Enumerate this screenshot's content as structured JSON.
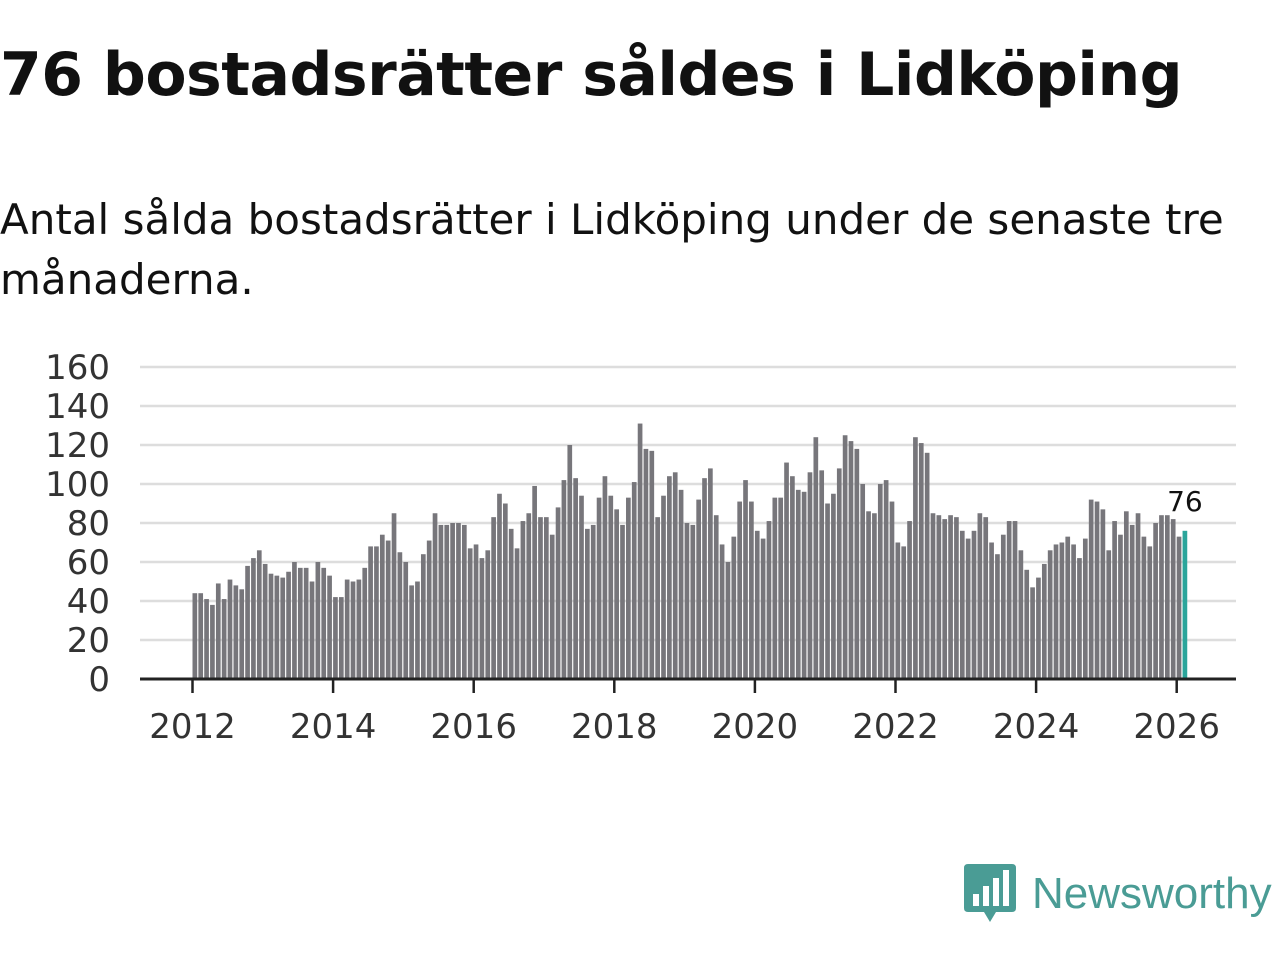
{
  "title": "76 bostadsrätter såldes i Lidköping",
  "subtitle": "Antal sålda bostadsrätter i Lidköping under de senaste tre månaderna.",
  "brand": {
    "name": "Newsworthy",
    "icon": "bar-chart-speech-bubble-icon",
    "color": "#4a9c95"
  },
  "chart_data": {
    "type": "bar",
    "title": "76 bostadsrätter såldes i Lidköping",
    "subtitle": "Antal sålda bostadsrätter i Lidköping under de senaste tre månaderna.",
    "xlabel": "",
    "ylabel": "",
    "ylim": [
      0,
      160
    ],
    "yticks": [
      "0",
      "20",
      "40",
      "60",
      "80",
      "100",
      "120",
      "140",
      "160"
    ],
    "xticks": [
      "2012",
      "2014",
      "2016",
      "2018",
      "2020",
      "2022",
      "2024",
      "2026"
    ],
    "x_start": {
      "year": 2012,
      "month": 1
    },
    "grid": true,
    "colors": {
      "bar": "#77767b",
      "highlight": "#2ba59b",
      "grid": "#dddddd",
      "axis": "#222222"
    },
    "highlight_label": "76",
    "values": [
      44,
      44,
      41,
      38,
      49,
      41,
      51,
      48,
      46,
      58,
      62,
      66,
      59,
      54,
      53,
      52,
      55,
      60,
      57,
      57,
      50,
      60,
      57,
      53,
      42,
      42,
      51,
      50,
      51,
      57,
      68,
      68,
      74,
      71,
      85,
      65,
      60,
      48,
      50,
      64,
      71,
      85,
      79,
      79,
      80,
      80,
      79,
      67,
      69,
      62,
      66,
      83,
      95,
      90,
      77,
      67,
      81,
      85,
      99,
      83,
      83,
      74,
      88,
      102,
      120,
      103,
      94,
      77,
      79,
      93,
      104,
      94,
      87,
      79,
      93,
      101,
      131,
      118,
      117,
      83,
      94,
      104,
      106,
      97,
      80,
      79,
      92,
      103,
      108,
      84,
      69,
      60,
      73,
      91,
      102,
      91,
      76,
      72,
      81,
      93,
      93,
      111,
      104,
      97,
      96,
      106,
      124,
      107,
      90,
      95,
      108,
      125,
      122,
      118,
      100,
      86,
      85,
      100,
      102,
      91,
      70,
      68,
      81,
      124,
      121,
      116,
      85,
      84,
      82,
      84,
      83,
      76,
      72,
      76,
      85,
      83,
      70,
      64,
      74,
      81,
      81,
      66,
      56,
      47,
      52,
      59,
      66,
      69,
      70,
      73,
      69,
      62,
      72,
      92,
      91,
      87,
      66,
      81,
      74,
      86,
      79,
      85,
      73,
      68,
      80,
      84,
      84,
      82,
      73,
      76
    ]
  }
}
